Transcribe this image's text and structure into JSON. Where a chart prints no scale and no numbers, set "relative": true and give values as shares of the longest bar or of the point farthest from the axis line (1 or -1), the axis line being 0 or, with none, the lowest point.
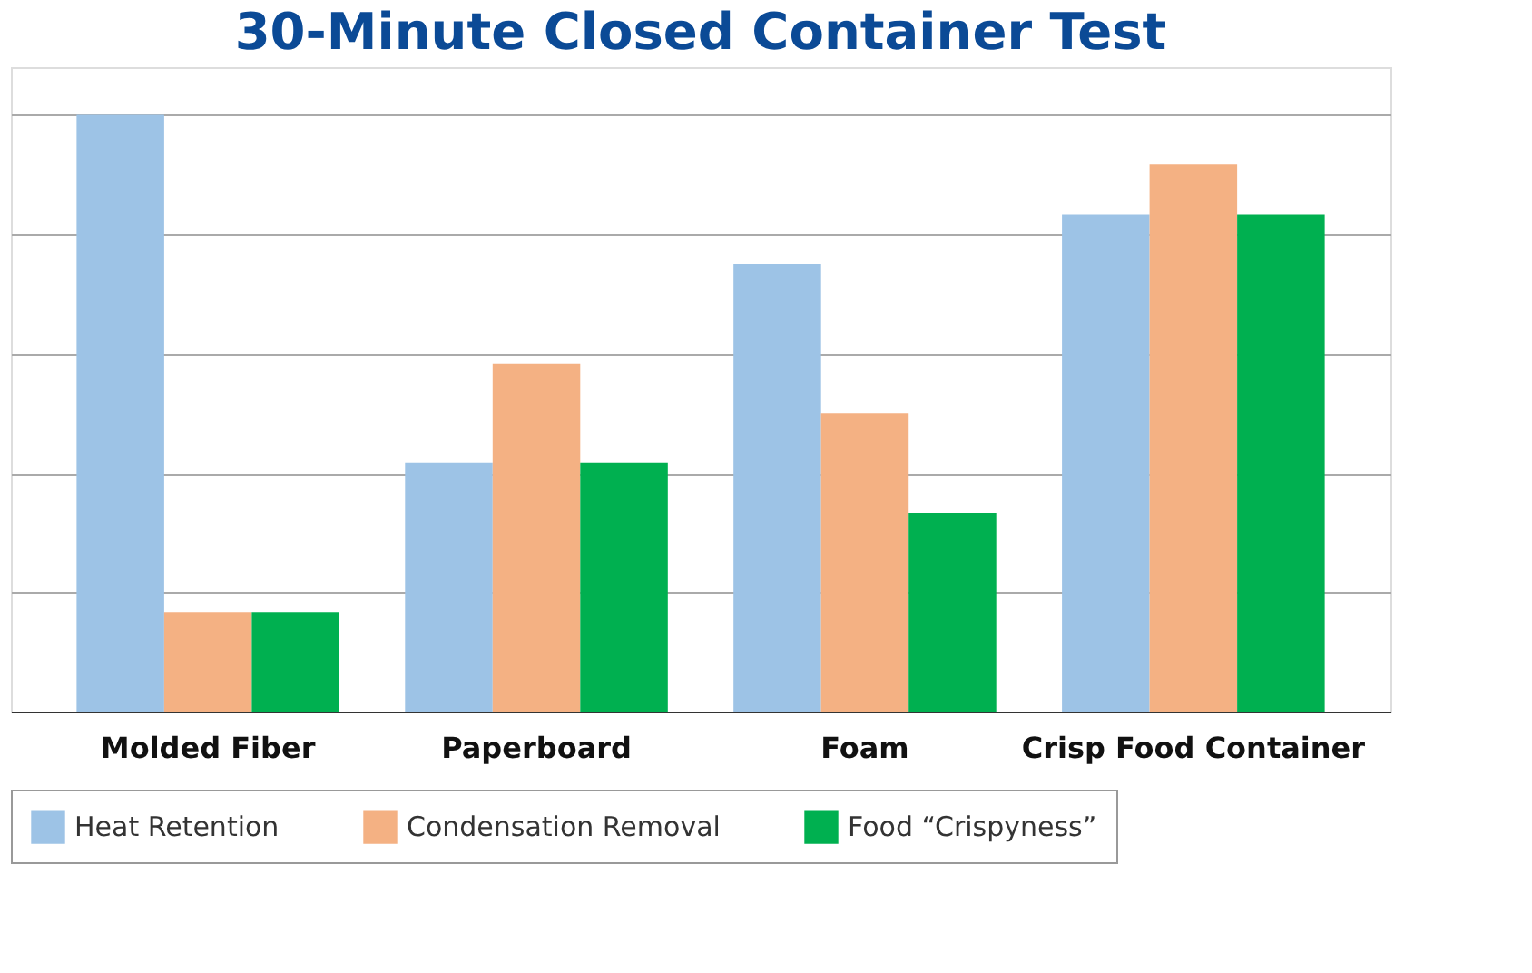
{
  "chart_data": {
    "type": "bar",
    "title": "30-Minute Closed Container Test",
    "relative": true,
    "grid": "y",
    "legend": "bottom",
    "categories": [
      "Molded Fiber",
      "Paperboard",
      "Foam",
      "Crisp Food Container"
    ],
    "series": [
      {
        "name": "Heat Retention",
        "color": "#9dc3e6",
        "values": [
          1,
          0.417,
          0.75,
          0.833
        ]
      },
      {
        "name": "Condensation Removal",
        "color": "#f4b183",
        "values": [
          0.167,
          0.583,
          0.5,
          0.917
        ]
      },
      {
        "name": "Food “Crispyness”",
        "color": "#00b050",
        "values": [
          0.167,
          0.417,
          0.333,
          0.833
        ]
      }
    ]
  }
}
